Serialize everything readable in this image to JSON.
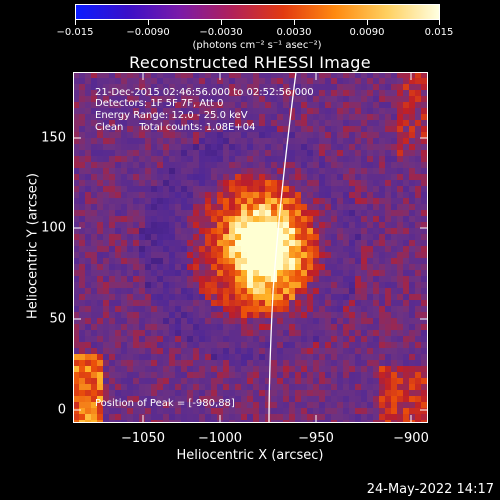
{
  "colorbar": {
    "tick_labels": [
      "−0.015",
      "−0.0090",
      "−0.0030",
      "0.0030",
      "0.0090",
      "0.015"
    ],
    "unit": "(photons cm⁻² s⁻¹ asec⁻²)",
    "colors": [
      "#0a1cff",
      "#3a10c8",
      "#7a1aa8",
      "#b0205a",
      "#e23a10",
      "#ff8a10",
      "#ffd060",
      "#ffffe0"
    ]
  },
  "title": "Reconstructed RHESSI Image",
  "info": {
    "time": "21-Dec-2015 02:46:56.000 to 02:52:56.000",
    "detectors": "Detectors: 1F 5F 7F, Att 0",
    "energy": "Energy Range: 12.0 - 25.0 keV",
    "clean": "Clean     Total counts: 1.08E+04"
  },
  "peak": "Position of Peak = [-980,88]",
  "x_axis": {
    "label": "Heliocentric X (arcsec)",
    "ticks": [
      "−1050",
      "−1000",
      "−950",
      "−900"
    ]
  },
  "y_axis": {
    "label": "Heliocentric Y (arcsec)",
    "ticks": [
      "0",
      "50",
      "100",
      "150"
    ]
  },
  "footer": "24-May-2022 14:17"
}
